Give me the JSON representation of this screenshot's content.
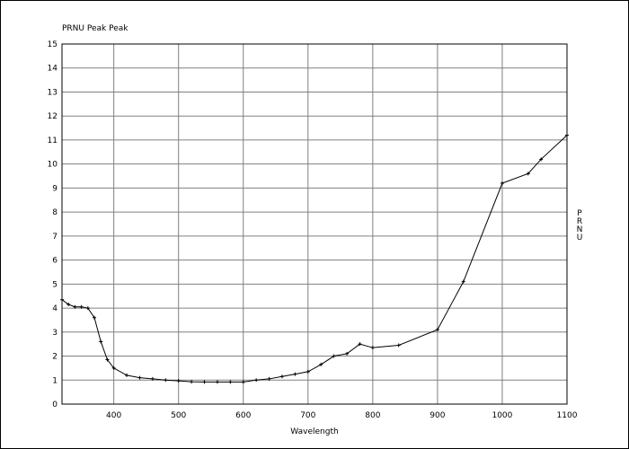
{
  "chart_data": {
    "type": "line",
    "title": "PRNU Peak Peak",
    "x_label": "Wavelength",
    "y_label": "PRNU",
    "x": [
      320,
      330,
      340,
      350,
      360,
      370,
      380,
      390,
      400,
      420,
      440,
      460,
      480,
      500,
      520,
      540,
      560,
      580,
      600,
      620,
      640,
      660,
      680,
      700,
      720,
      740,
      760,
      780,
      800,
      840,
      900,
      940,
      1000,
      1040,
      1060,
      1100
    ],
    "series": [
      {
        "name": "PRNU",
        "color": "#000000",
        "values": [
          4.35,
          4.15,
          4.05,
          4.05,
          4.0,
          3.6,
          2.6,
          1.85,
          1.5,
          1.2,
          1.1,
          1.05,
          1.0,
          0.97,
          0.93,
          0.92,
          0.92,
          0.92,
          0.92,
          1.0,
          1.05,
          1.15,
          1.25,
          1.35,
          1.65,
          2.0,
          2.1,
          2.5,
          2.35,
          2.45,
          3.1,
          5.1,
          9.2,
          9.6,
          10.2,
          11.2
        ]
      }
    ],
    "xlim": [
      320,
      1100
    ],
    "xticks": [
      400,
      500,
      600,
      700,
      800,
      900,
      1000,
      1100
    ],
    "ylim": [
      0,
      15
    ],
    "yticks": [
      0,
      1,
      2,
      3,
      4,
      5,
      6,
      7,
      8,
      9,
      10,
      11,
      12,
      13,
      14,
      15
    ],
    "grid": true
  }
}
